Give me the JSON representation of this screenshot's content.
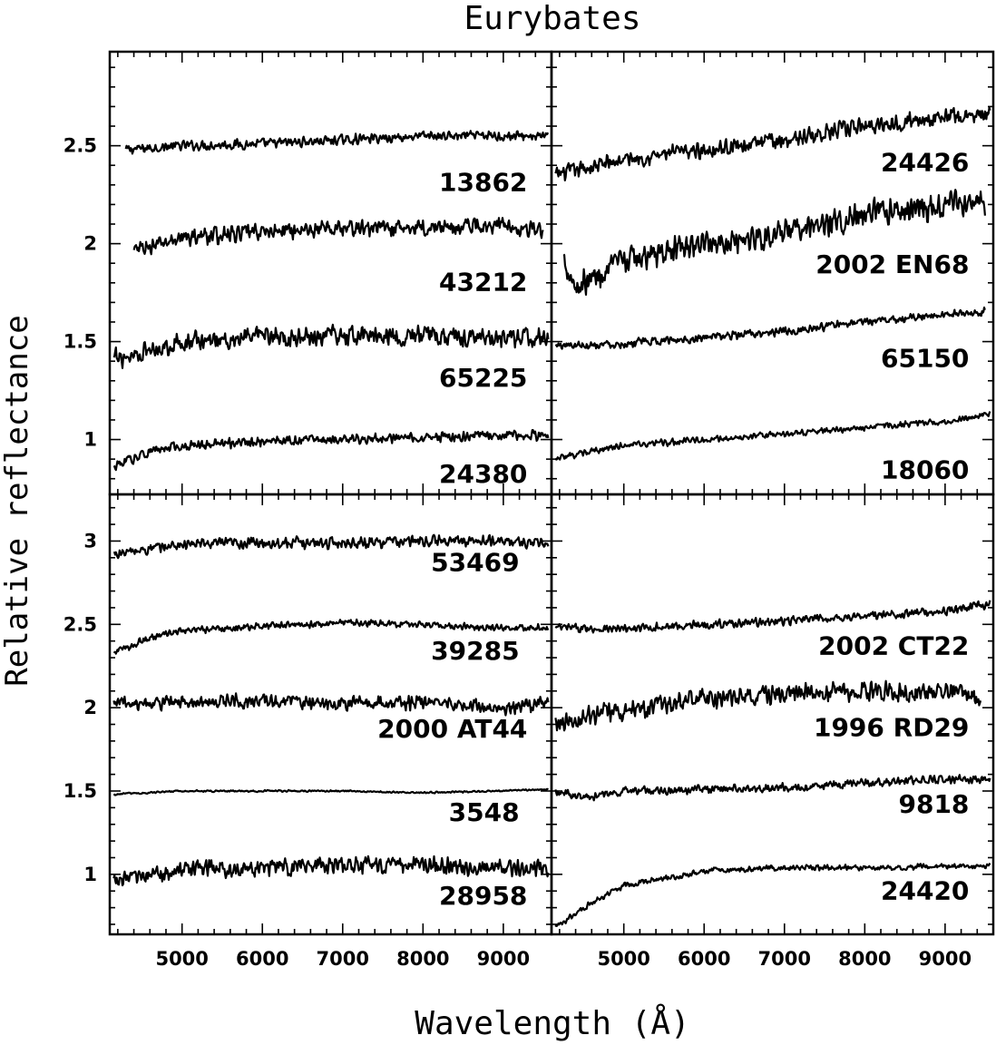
{
  "chart_data": {
    "type": "line",
    "title": "Eurybates",
    "xlabel": "Wavelength (Å)",
    "ylabel": "Relative reflectance",
    "xlim": [
      4100,
      9600
    ],
    "x_ticks": [
      5000,
      6000,
      7000,
      8000,
      9000
    ],
    "x_tick_labels": [
      "5000",
      "6000",
      "7000",
      "8000",
      "9000"
    ],
    "panels": [
      {
        "id": "top-left",
        "ylim": [
          0.72,
          2.98
        ],
        "y_ticks": [
          1,
          1.5,
          2,
          2.5
        ],
        "y_tick_labels": [
          "1",
          "1.5",
          "2",
          "2.5"
        ],
        "series": [
          {
            "name": "13862",
            "x_range": [
              4300,
              9560
            ],
            "x": [
              4300,
              5000,
              6000,
              7000,
              8000,
              9000,
              9560
            ],
            "y": [
              2.48,
              2.5,
              2.51,
              2.53,
              2.55,
              2.55,
              2.55
            ],
            "noise": 0.03
          },
          {
            "name": "43212",
            "x_range": [
              4400,
              9500
            ],
            "x": [
              4400,
              5000,
              6000,
              7000,
              8000,
              9000,
              9500
            ],
            "y": [
              1.96,
              2.03,
              2.06,
              2.08,
              2.08,
              2.1,
              2.06
            ],
            "noise": 0.05
          },
          {
            "name": "65225",
            "x_range": [
              4150,
              9560
            ],
            "x": [
              4150,
              5000,
              6000,
              7000,
              8000,
              9000,
              9560
            ],
            "y": [
              1.41,
              1.5,
              1.52,
              1.53,
              1.53,
              1.52,
              1.52
            ],
            "noise": 0.06
          },
          {
            "name": "24380",
            "x_range": [
              4150,
              9560
            ],
            "x": [
              4150,
              4600,
              5000,
              6000,
              7000,
              8000,
              9000,
              9560
            ],
            "y": [
              0.86,
              0.94,
              0.97,
              0.99,
              1.0,
              1.01,
              1.02,
              1.02
            ],
            "noise": 0.03
          }
        ],
        "labels": [
          {
            "text": "13862",
            "x": 9300,
            "y": 2.27
          },
          {
            "text": "43212",
            "x": 9300,
            "y": 1.76
          },
          {
            "text": "65225",
            "x": 9300,
            "y": 1.27
          },
          {
            "text": "24380",
            "x": 9300,
            "y": 0.78
          }
        ]
      },
      {
        "id": "top-right",
        "ylim": [
          0.72,
          2.98
        ],
        "y_ticks": [
          1,
          1.5,
          2,
          2.5
        ],
        "y_tick_labels": [
          "1",
          "1.5",
          "2",
          "2.5"
        ],
        "series": [
          {
            "name": "24426",
            "x_range": [
              4150,
              9560
            ],
            "x": [
              4150,
              5000,
              6000,
              7000,
              8000,
              9000,
              9560
            ],
            "y": [
              2.35,
              2.43,
              2.48,
              2.53,
              2.6,
              2.65,
              2.65
            ],
            "noise": 0.05
          },
          {
            "name": "2002 EN68",
            "x_range": [
              4250,
              9500
            ],
            "x": [
              4250,
              4400,
              5000,
              6000,
              7000,
              8000,
              9000,
              9500
            ],
            "y": [
              1.93,
              1.78,
              1.91,
              2.0,
              2.05,
              2.15,
              2.2,
              2.2
            ],
            "noise": 0.08
          },
          {
            "name": "65150",
            "x_range": [
              4150,
              9500
            ],
            "x": [
              4150,
              5000,
              6000,
              7000,
              8000,
              9000,
              9500
            ],
            "y": [
              1.48,
              1.49,
              1.52,
              1.55,
              1.6,
              1.64,
              1.65
            ],
            "noise": 0.025
          },
          {
            "name": "18060",
            "x_range": [
              4150,
              9560
            ],
            "x": [
              4150,
              5000,
              6000,
              7000,
              8000,
              9000,
              9560
            ],
            "y": [
              0.9,
              0.97,
              1.0,
              1.03,
              1.06,
              1.09,
              1.13
            ],
            "noise": 0.02
          }
        ],
        "labels": [
          {
            "text": "24426",
            "x": 9300,
            "y": 2.37
          },
          {
            "text": "2002 EN68",
            "x": 9300,
            "y": 1.85
          },
          {
            "text": "65150",
            "x": 9300,
            "y": 1.37
          },
          {
            "text": "18060",
            "x": 9300,
            "y": 0.8
          }
        ]
      },
      {
        "id": "bottom-left",
        "ylim": [
          0.64,
          3.28
        ],
        "y_ticks": [
          1,
          1.5,
          2,
          2.5,
          3
        ],
        "y_tick_labels": [
          "1",
          "1.5",
          "2",
          "2.5",
          "3"
        ],
        "series": [
          {
            "name": "53469",
            "x_range": [
              4150,
              9560
            ],
            "x": [
              4150,
              5000,
              6000,
              7000,
              8000,
              9000,
              9560
            ],
            "y": [
              2.92,
              2.98,
              2.99,
              2.99,
              3.0,
              3.0,
              2.98
            ],
            "noise": 0.04
          },
          {
            "name": "39285",
            "x_range": [
              4150,
              9560
            ],
            "x": [
              4150,
              4600,
              5000,
              6000,
              7000,
              8000,
              9000,
              9560
            ],
            "y": [
              2.33,
              2.42,
              2.46,
              2.49,
              2.51,
              2.5,
              2.48,
              2.48
            ],
            "noise": 0.025
          },
          {
            "name": "2000 AT44",
            "x_range": [
              4150,
              9560
            ],
            "x": [
              4150,
              5000,
              6000,
              7000,
              8000,
              9000,
              9560
            ],
            "y": [
              2.03,
              2.03,
              2.04,
              2.03,
              2.03,
              2.0,
              2.03
            ],
            "noise": 0.05
          },
          {
            "name": "3548",
            "x_range": [
              4150,
              9560
            ],
            "x": [
              4150,
              5000,
              6000,
              7000,
              8000,
              9000,
              9560
            ],
            "y": [
              1.48,
              1.5,
              1.5,
              1.5,
              1.49,
              1.5,
              1.51
            ],
            "noise": 0.006
          },
          {
            "name": "28958",
            "x_range": [
              4150,
              9560
            ],
            "x": [
              4150,
              5000,
              6000,
              7000,
              8000,
              9000,
              9560
            ],
            "y": [
              0.96,
              1.03,
              1.04,
              1.05,
              1.06,
              1.04,
              1.04
            ],
            "noise": 0.06
          }
        ],
        "labels": [
          {
            "text": "53469",
            "x": 9200,
            "y": 2.82
          },
          {
            "text": "39285",
            "x": 9200,
            "y": 2.29
          },
          {
            "text": "2000 AT44",
            "x": 9300,
            "y": 1.82
          },
          {
            "text": "3548",
            "x": 9200,
            "y": 1.32
          },
          {
            "text": "28958",
            "x": 9300,
            "y": 0.82
          }
        ]
      },
      {
        "id": "bottom-right",
        "ylim": [
          0.64,
          3.28
        ],
        "y_ticks": [
          1,
          1.5,
          2,
          2.5,
          3
        ],
        "y_tick_labels": [
          "1",
          "1.5",
          "2",
          "2.5",
          "3"
        ],
        "series": [
          {
            "name": "2002 CT22",
            "x_range": [
              4150,
              9560
            ],
            "x": [
              4150,
              5000,
              6000,
              7000,
              8000,
              9000,
              9560
            ],
            "y": [
              2.48,
              2.47,
              2.5,
              2.52,
              2.55,
              2.58,
              2.62
            ],
            "noise": 0.03
          },
          {
            "name": "1996 RD29",
            "x_range": [
              4150,
              9450
            ],
            "x": [
              4150,
              5000,
              6000,
              7000,
              8000,
              9000,
              9450
            ],
            "y": [
              1.92,
              1.98,
              2.05,
              2.08,
              2.1,
              2.1,
              2.05
            ],
            "noise": 0.07
          },
          {
            "name": "9818",
            "x_range": [
              4150,
              9560
            ],
            "x": [
              4150,
              4500,
              5000,
              6000,
              7000,
              8000,
              9000,
              9560
            ],
            "y": [
              1.5,
              1.46,
              1.5,
              1.51,
              1.52,
              1.55,
              1.57,
              1.57
            ],
            "noise": 0.03
          },
          {
            "name": "24420",
            "x_range": [
              4150,
              9560
            ],
            "x": [
              4150,
              4600,
              5000,
              6000,
              7000,
              8000,
              9000,
              9560
            ],
            "y": [
              0.68,
              0.83,
              0.93,
              1.02,
              1.04,
              1.04,
              1.05,
              1.05
            ],
            "noise": 0.02
          }
        ],
        "labels": [
          {
            "text": "2002 CT22",
            "x": 9300,
            "y": 2.32
          },
          {
            "text": "1996 RD29",
            "x": 9300,
            "y": 1.83
          },
          {
            "text": "9818",
            "x": 9300,
            "y": 1.37
          },
          {
            "text": "24420",
            "x": 9300,
            "y": 0.85
          }
        ]
      }
    ]
  }
}
